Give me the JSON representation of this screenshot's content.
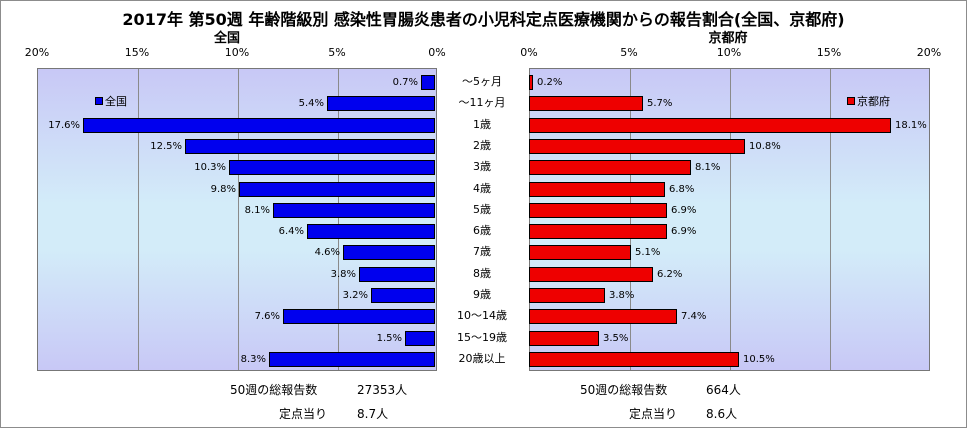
{
  "chart_data": {
    "type": "bar",
    "title": "2017年 第50週 年齢階級別 感染性胃腸炎患者の小児科定点医療機関からの報告割合(全国、京都府)",
    "categories": [
      "～5ヶ月",
      "～11ヶ月",
      "1歳",
      "2歳",
      "3歳",
      "4歳",
      "5歳",
      "6歳",
      "7歳",
      "8歳",
      "9歳",
      "10～14歳",
      "15～19歳",
      "20歳以上"
    ],
    "series": [
      {
        "name": "全国",
        "color": "#0000ee",
        "values": [
          0.7,
          5.4,
          17.6,
          12.5,
          10.3,
          9.8,
          8.1,
          6.4,
          4.6,
          3.8,
          3.2,
          7.6,
          1.5,
          8.3
        ],
        "labels": [
          "0.7%",
          "5.4%",
          "17.6%",
          "12.5%",
          "10.3%",
          "9.8%",
          "8.1%",
          "6.4%",
          "4.6%",
          "3.8%",
          "3.2%",
          "7.6%",
          "1.5%",
          "8.3%"
        ]
      },
      {
        "name": "京都府",
        "color": "#ee0000",
        "values": [
          0.2,
          5.7,
          18.1,
          10.8,
          8.1,
          6.8,
          6.9,
          6.9,
          5.1,
          6.2,
          3.8,
          7.4,
          3.5,
          10.5
        ],
        "labels": [
          "0.2%",
          "5.7%",
          "18.1%",
          "10.8%",
          "8.1%",
          "6.8%",
          "6.9%",
          "6.9%",
          "5.1%",
          "6.2%",
          "3.8%",
          "7.4%",
          "3.5%",
          "10.5%"
        ]
      }
    ],
    "xlim": [
      0,
      20
    ],
    "ticks": [
      "0%",
      "5%",
      "10%",
      "15%",
      "20%"
    ],
    "grid": true,
    "layout": "butterfly"
  },
  "panels": {
    "left": {
      "title": "全国",
      "legend": "全国",
      "ticks": [
        "20%",
        "15%",
        "10%",
        "5%",
        "0%"
      ]
    },
    "right": {
      "title": "京都府",
      "legend": "京都府",
      "ticks": [
        "0%",
        "5%",
        "10%",
        "15%",
        "20%"
      ]
    }
  },
  "footer": {
    "left": {
      "total_label": "50週の総報告数",
      "total_value": "27353人",
      "per_label": "定点当り",
      "per_value": "8.7人"
    },
    "right": {
      "total_label": "50週の総報告数",
      "total_value": "664人",
      "per_label": "定点当り",
      "per_value": "8.6人"
    }
  }
}
